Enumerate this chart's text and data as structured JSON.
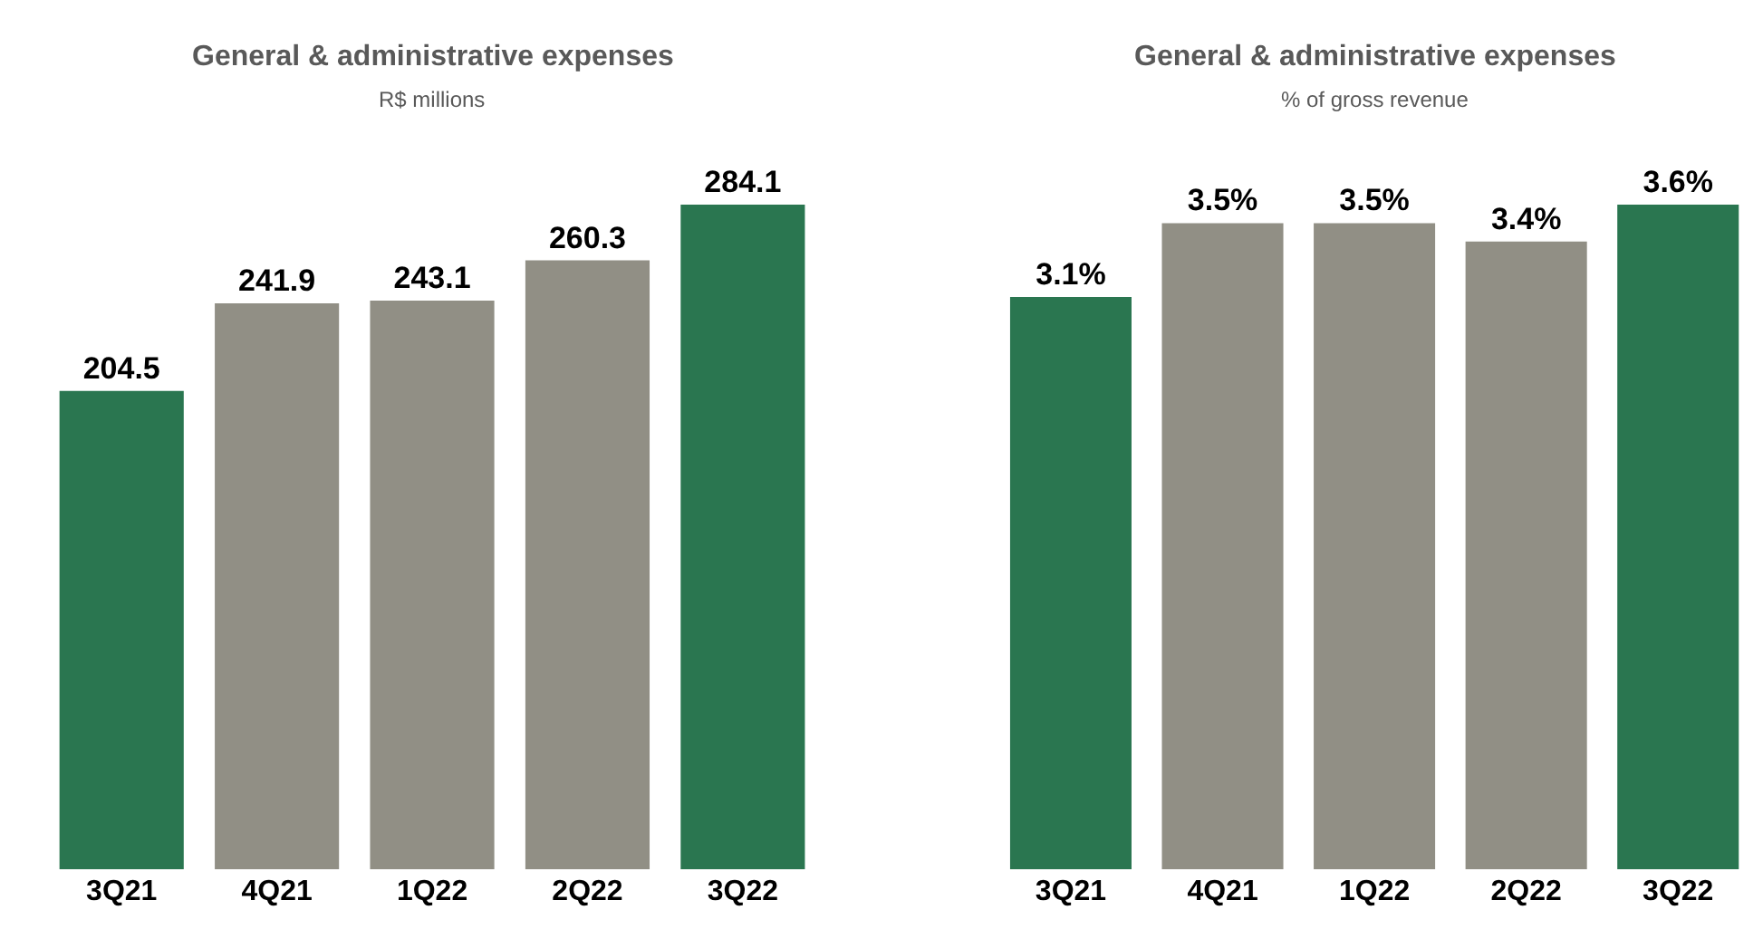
{
  "chart_data": [
    {
      "type": "bar",
      "title": "General & administrative expenses",
      "subtitle": "R$ millions",
      "categories": [
        "3Q21",
        "4Q21",
        "1Q22",
        "2Q22",
        "3Q22"
      ],
      "values": [
        204.5,
        241.9,
        243.1,
        260.3,
        284.1
      ],
      "colors": [
        "#2a7650",
        "#918f85",
        "#918f85",
        "#918f85",
        "#2a7650"
      ],
      "data_labels": true
    },
    {
      "type": "bar",
      "title": "General & administrative expenses",
      "subtitle": "% of gross revenue",
      "categories": [
        "3Q21",
        "4Q21",
        "1Q22",
        "2Q22",
        "3Q22"
      ],
      "values": [
        3.1,
        3.5,
        3.5,
        3.4,
        3.6
      ],
      "colors": [
        "#2a7650",
        "#918f85",
        "#918f85",
        "#918f85",
        "#2a7650"
      ],
      "value_labels": [
        "3.1%",
        "3.5%",
        "3.5%",
        "3.4%",
        "3.6%"
      ]
    }
  ]
}
